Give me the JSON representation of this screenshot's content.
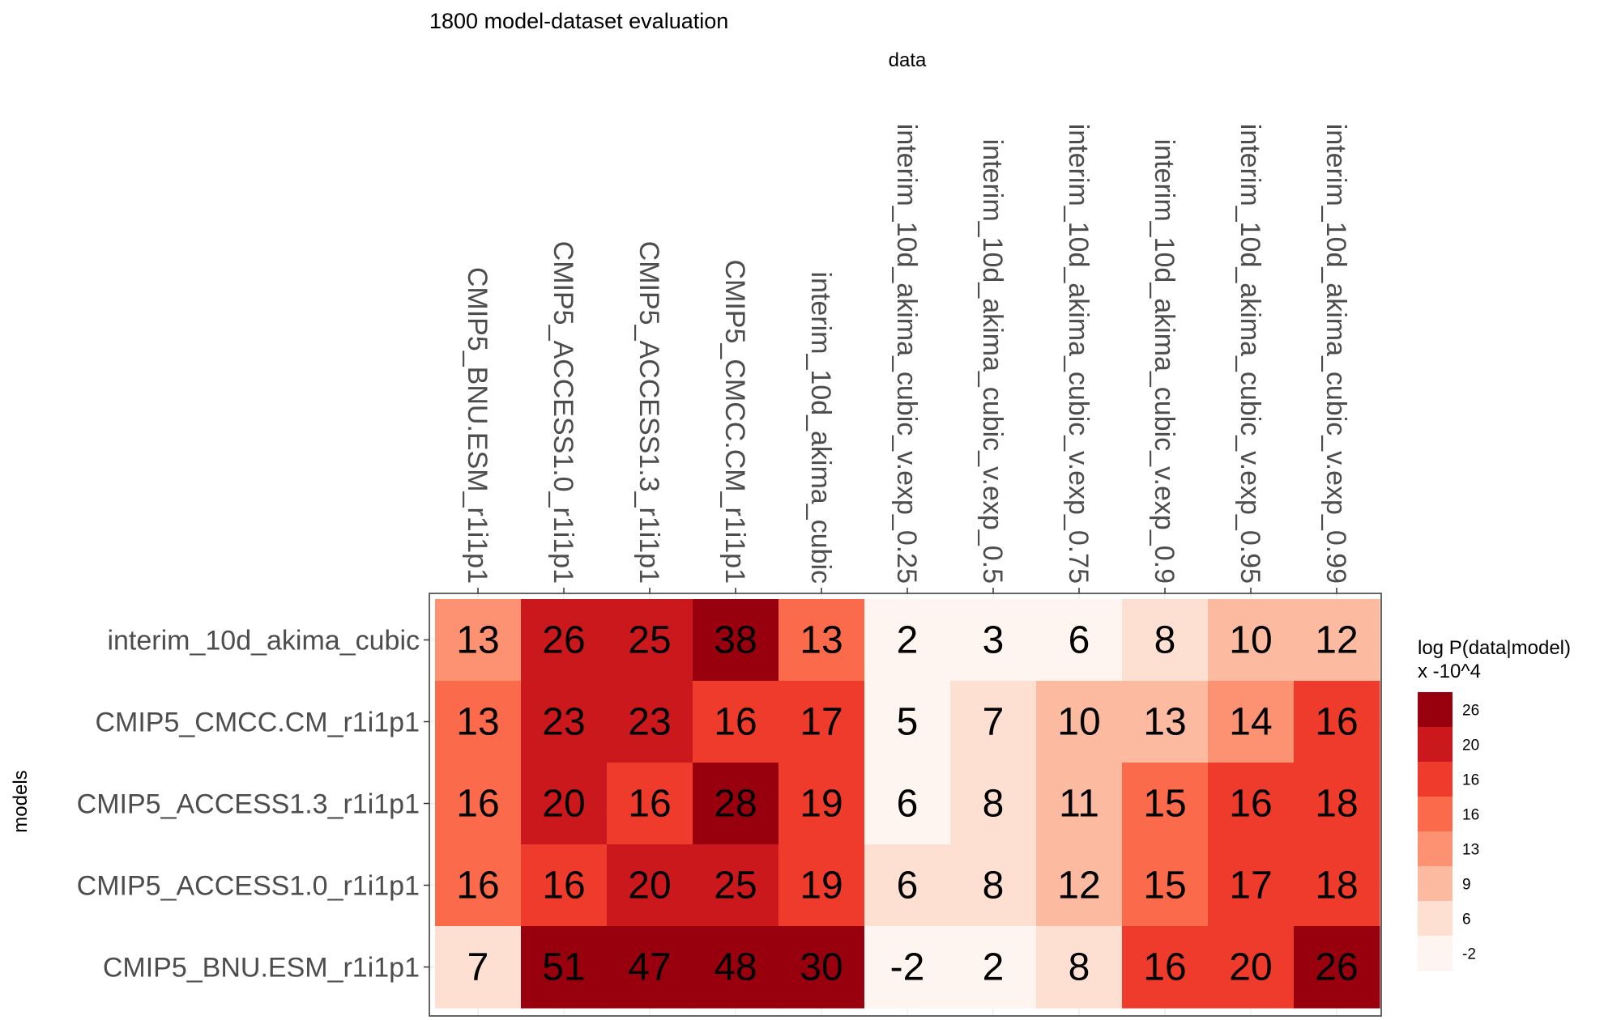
{
  "chart_data": {
    "type": "heatmap",
    "title": "1800 model-dataset evaluation",
    "xlabel": "data",
    "ylabel": "models",
    "x_categories": [
      "CMIP5_BNU.ESM_r1i1p1",
      "CMIP5_ACCESS1.0_r1i1p1",
      "CMIP5_ACCESS1.3_r1i1p1",
      "CMIP5_CMCC.CM_r1i1p1",
      "interim_10d_akima_cubic",
      "interim_10d_akima_cubic_v.exp_0.25",
      "interim_10d_akima_cubic_v.exp_0.5",
      "interim_10d_akima_cubic_v.exp_0.75",
      "interim_10d_akima_cubic_v.exp_0.9",
      "interim_10d_akima_cubic_v.exp_0.95",
      "interim_10d_akima_cubic_v.exp_0.99"
    ],
    "y_categories": [
      "interim_10d_akima_cubic",
      "CMIP5_CMCC.CM_r1i1p1",
      "CMIP5_ACCESS1.3_r1i1p1",
      "CMIP5_ACCESS1.0_r1i1p1",
      "CMIP5_BNU.ESM_r1i1p1"
    ],
    "values": [
      [
        13,
        26,
        25,
        38,
        13,
        2,
        3,
        6,
        8,
        10,
        12
      ],
      [
        13,
        23,
        23,
        16,
        17,
        5,
        7,
        10,
        13,
        14,
        16
      ],
      [
        16,
        20,
        16,
        28,
        19,
        6,
        8,
        11,
        15,
        16,
        18
      ],
      [
        16,
        16,
        20,
        25,
        19,
        6,
        8,
        12,
        15,
        17,
        18
      ],
      [
        7,
        51,
        47,
        48,
        30,
        -2,
        2,
        8,
        16,
        20,
        26
      ]
    ],
    "fill_classes": [
      [
        3,
        6,
        6,
        7,
        4,
        0,
        0,
        0,
        1,
        2,
        2
      ],
      [
        4,
        6,
        6,
        5,
        5,
        0,
        1,
        2,
        2,
        3,
        5
      ],
      [
        4,
        6,
        5,
        7,
        5,
        0,
        1,
        2,
        4,
        5,
        5
      ],
      [
        4,
        5,
        6,
        6,
        5,
        1,
        1,
        2,
        4,
        5,
        5
      ],
      [
        1,
        7,
        7,
        7,
        7,
        0,
        0,
        1,
        5,
        5,
        7
      ]
    ],
    "legend": {
      "title_line1": "log P(data|model)",
      "title_line2": "x -10^4",
      "labels": [
        "26",
        "20",
        "16",
        "16",
        "13",
        "9",
        "6",
        "-2"
      ],
      "colors": [
        "#99000d",
        "#cb181d",
        "#ef3b2c",
        "#fb6a4a",
        "#fc9272",
        "#fcbba1",
        "#fee0d2",
        "#fff5f0"
      ]
    },
    "palette": [
      "#fff5f0",
      "#fee0d2",
      "#fcbba1",
      "#fc9272",
      "#fb6a4a",
      "#ef3b2c",
      "#cb181d",
      "#99000d"
    ],
    "legend_position": "right",
    "grid": true
  }
}
